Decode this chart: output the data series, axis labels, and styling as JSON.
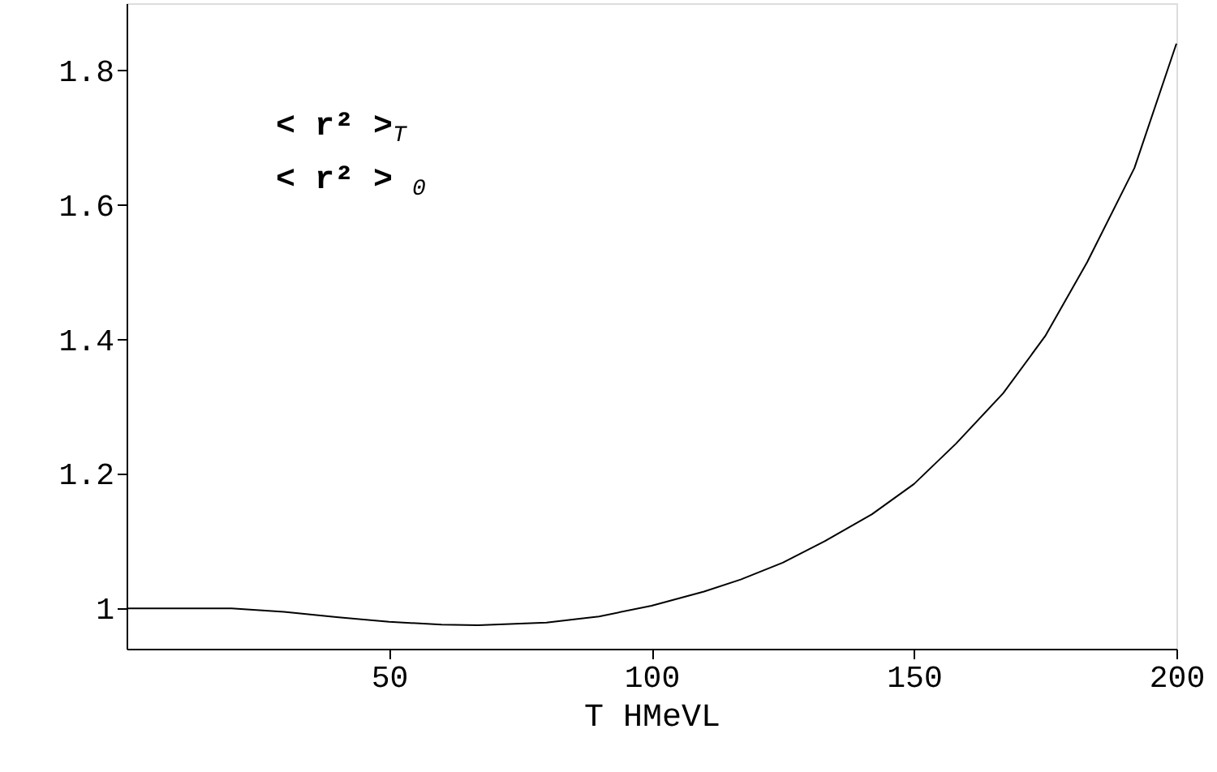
{
  "chart_data": {
    "type": "line",
    "xlabel": "T HMeVL",
    "annotations": [
      "< r² >$_{T}$",
      " < r² >$_{0}$"
    ],
    "series": [
      {
        "color": "#000000",
        "x": [
          0,
          20,
          30,
          40,
          50,
          60,
          67,
          80,
          90,
          100,
          110,
          117,
          125,
          133,
          142,
          150,
          158,
          167,
          175,
          183,
          192,
          200
        ],
        "values": [
          1.0,
          1.0,
          0.995,
          0.987,
          0.98,
          0.976,
          0.975,
          0.979,
          0.988,
          1.004,
          1.025,
          1.043,
          1.068,
          1.1,
          1.14,
          1.185,
          1.245,
          1.32,
          1.405,
          1.515,
          1.655,
          1.84
        ]
      }
    ],
    "xlim": [
      0,
      200
    ],
    "xticks": [
      50,
      100,
      150,
      200
    ],
    "ylim": [
      0.94,
      1.9
    ],
    "yticks": [
      1,
      1.2,
      1.4,
      1.6,
      1.8
    ],
    "grid": false,
    "marker": "none",
    "line_style": "solid"
  }
}
